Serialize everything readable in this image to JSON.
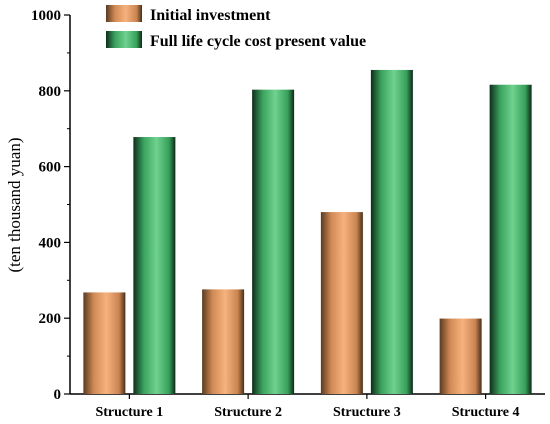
{
  "chart_data": {
    "type": "bar",
    "categories": [
      "Structure 1",
      "Structure 2",
      "Structure 3",
      "Structure 4"
    ],
    "series": [
      {
        "name": "Initial investment",
        "values": [
          268,
          276,
          480,
          199
        ],
        "color": "#f2a66b"
      },
      {
        "name": "Full life cycle cost present value",
        "values": [
          678,
          803,
          855,
          816
        ],
        "color": "#3fbf6a"
      }
    ],
    "ylabel": "(ten thousand yuan)",
    "xlabel": "",
    "ylim": [
      0,
      1000
    ],
    "yticks": [
      0,
      200,
      400,
      600,
      800,
      1000
    ],
    "grid": false,
    "legend": "top"
  }
}
